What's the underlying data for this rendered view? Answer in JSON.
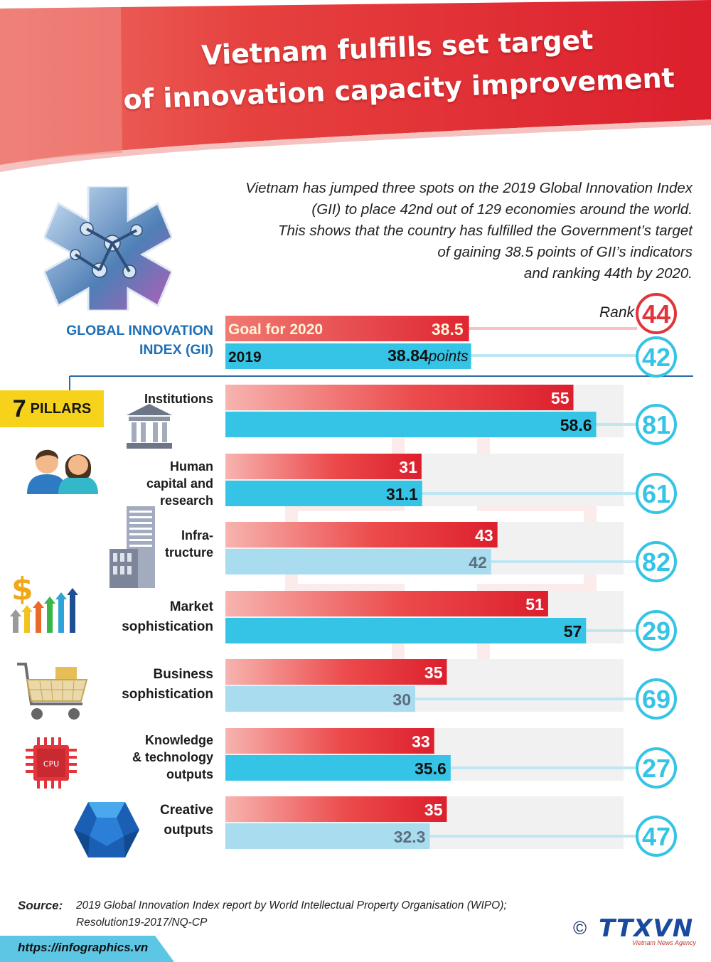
{
  "title": {
    "line1": "Vietnam fulfills set target",
    "line2": "of innovation capacity improvement"
  },
  "intro": {
    "lines": [
      "Vietnam has jumped three spots on the 2019 Global Innovation Index",
      "(GII) to place 42nd out of 129 economies around the world.",
      "This shows that the country has fulfilled the Government’s target",
      "of gaining 38.5 points of GII’s indicators",
      "and ranking 44th by 2020."
    ]
  },
  "gii_label": {
    "line1": "GLOBAL INNOVATION",
    "line2": "INDEX (GII)"
  },
  "rank_label": "Rank",
  "pillars_tag": {
    "number": "7",
    "text": "PILLARS"
  },
  "colors": {
    "goal_red": "#e8383d",
    "actual_cyan": "#35c4e6",
    "actual_light": "#a9dcee",
    "gii_blue": "#1e6fb5",
    "tag_yellow": "#f7d21b"
  },
  "chart_data": {
    "type": "bar",
    "orientation": "horizontal",
    "gii": {
      "goal": {
        "label": "Goal for 2020",
        "value_label": "38.5",
        "value": 38.5,
        "rank": "44"
      },
      "actual": {
        "label": "2019",
        "value_label": "38.84",
        "unit": "points",
        "value": 38.84,
        "rank": "42"
      }
    },
    "categories": [
      "Institutions",
      "Human\ncapital and\nresearch",
      "Infra-\ntructure",
      "Market\nsophistication",
      "Business\nsophistication",
      "Knowledge\n& technology\noutputs",
      "Creative\noutputs"
    ],
    "series": [
      {
        "values": [
          55,
          31,
          43,
          51,
          35,
          33,
          35
        ],
        "labels": [
          "55",
          "31",
          "43",
          "51",
          "35",
          "33",
          "35"
        ]
      },
      {
        "values": [
          58.6,
          31.1,
          42,
          57,
          30,
          35.6,
          32.3
        ],
        "labels": [
          "58.6",
          "31.1",
          "42",
          "57",
          "30",
          "35.6",
          "32.3"
        ]
      }
    ],
    "ranks_2019": [
      "81",
      "61",
      "82",
      "29",
      "69",
      "27",
      "47"
    ],
    "xlim": [
      0,
      100
    ]
  },
  "source": {
    "label": "Source:",
    "line1": "2019 Global Innovation Index report by World Intellectual Property Organisation (WIPO);",
    "line2": "Resolution19-2017/NQ-CP"
  },
  "footer": {
    "url": "https://infographics.vn",
    "copyright": "©",
    "logo": "TTXVN",
    "logo_sub": "Vietnam News Agency"
  }
}
